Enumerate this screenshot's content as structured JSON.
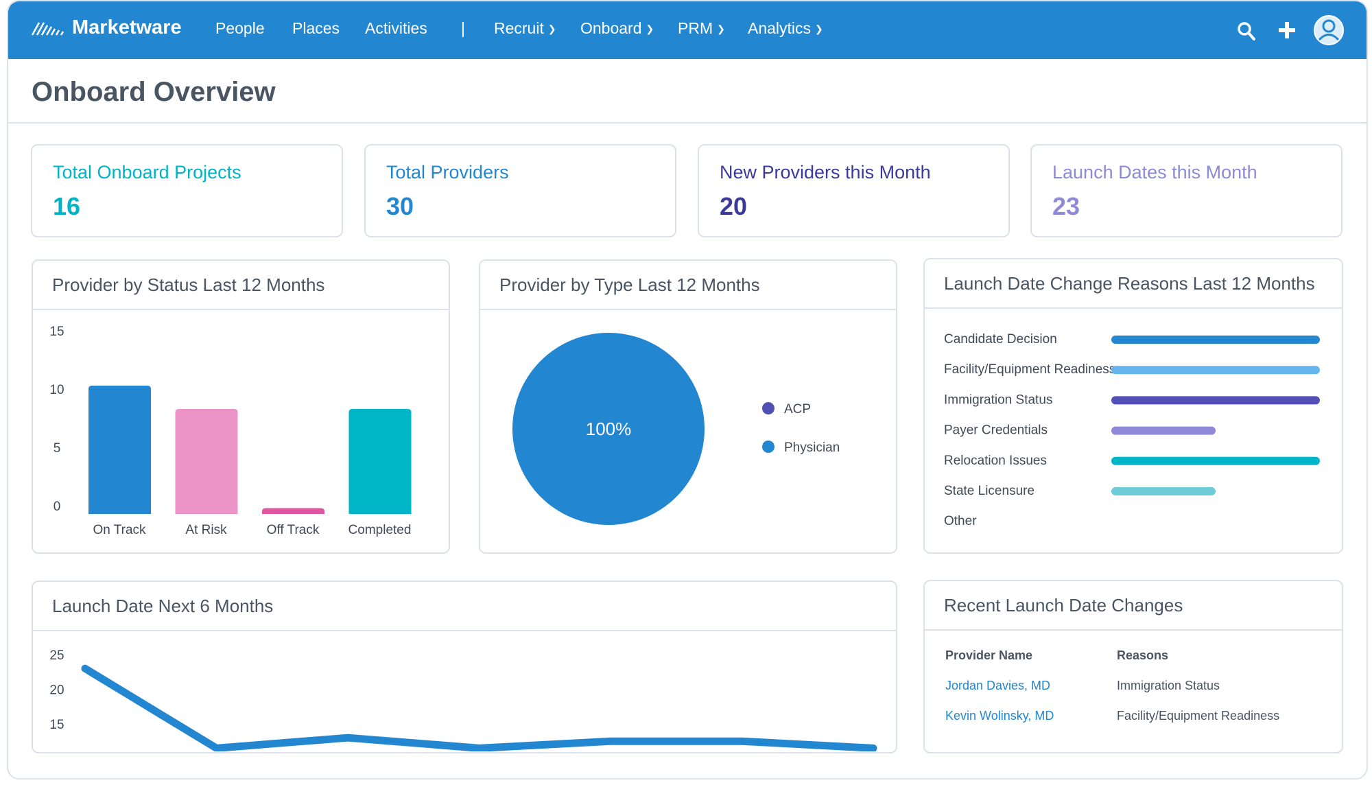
{
  "nav": {
    "brand": "Marketware",
    "items": [
      "People",
      "Places",
      "Activities"
    ],
    "divider": "|",
    "dropdowns": [
      "Recruit",
      "Onboard",
      "PRM",
      "Analytics"
    ],
    "icons": [
      "search-icon",
      "plus-icon",
      "user-avatar-icon"
    ],
    "color": "#2286d0"
  },
  "page": {
    "title": "Onboard Overview"
  },
  "stats": [
    {
      "label": "Total Onboard Projects",
      "value": "16",
      "color": "#00b3c6"
    },
    {
      "label": "Total Providers",
      "value": "30",
      "color": "#2286d0"
    },
    {
      "label": "New Providers this Month",
      "value": "20",
      "color": "#3b3a9a"
    },
    {
      "label": "Launch Dates this Month",
      "value": "23",
      "color": "#8f8ad8"
    }
  ],
  "chart_data": [
    {
      "type": "bar",
      "title": "Provider by Status Last 12 Months",
      "categories": [
        "On Track",
        "At Risk",
        "Off Track",
        "Completed"
      ],
      "values": [
        11,
        9,
        0.5,
        9
      ],
      "colors": [
        "#2286d0",
        "#ec93c7",
        "#e255a0",
        "#00b5c6"
      ],
      "ylim": [
        0,
        15
      ],
      "yticks": [
        "0",
        "5",
        "10",
        "15"
      ],
      "grid": false
    },
    {
      "type": "pie",
      "title": "Provider by Type Last 12 Months",
      "labels": [
        "ACP",
        "Physician"
      ],
      "values": [
        0,
        100
      ],
      "colors": [
        "#5350b5",
        "#2286d0"
      ],
      "center_label": "100%",
      "legend": "right"
    },
    {
      "type": "bar",
      "orientation": "horizontal",
      "title": "Launch Date Change Reasons Last 12 Months",
      "categories": [
        "Candidate Decision",
        "Facility/Equipment Readiness",
        "Immigration Status",
        "Payer Credentials",
        "Relocation Issues",
        "State Licensure",
        "Other"
      ],
      "values": [
        2,
        2,
        2,
        1,
        2,
        1,
        0
      ],
      "colors": [
        "#2286d0",
        "#66b4ee",
        "#5350b5",
        "#8f8ad8",
        "#00b5c6",
        "#6ecbd8",
        "#cccccc"
      ]
    },
    {
      "type": "line",
      "title": "Launch Date Next 6 Months",
      "values": [
        23,
        11.5,
        13,
        11.5,
        12.5,
        12.5,
        11.5
      ],
      "yticks": [
        "15",
        "20",
        "25"
      ],
      "color": "#2286d0"
    }
  ],
  "recent": {
    "title": "Recent Launch Date Changes",
    "headers": [
      "Provider Name",
      "Reasons"
    ],
    "rows": [
      [
        "Jordan Davies, MD",
        "Immigration Status"
      ],
      [
        "Kevin Wolinsky, MD",
        "Facility/Equipment Readiness"
      ]
    ]
  }
}
